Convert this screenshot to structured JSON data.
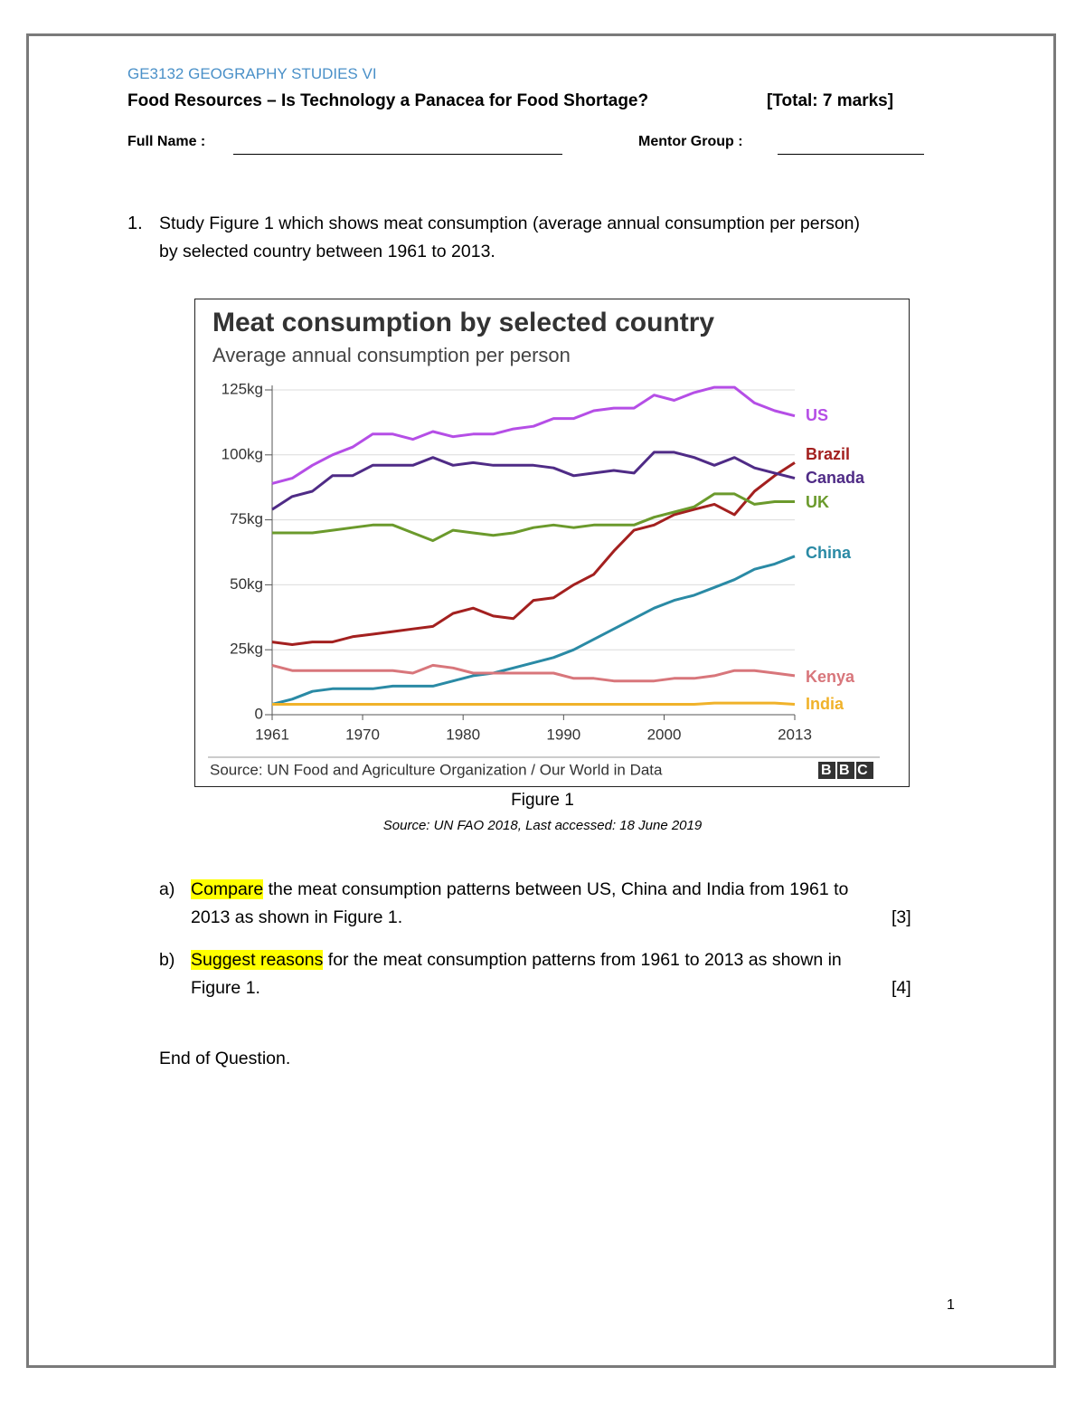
{
  "header": {
    "course": "GE3132  GEOGRAPHY STUDIES VI",
    "title": "Food Resources – Is Technology a Panacea for Food Shortage?",
    "total": "[Total: 7 marks]",
    "name_label": "Full Name  :",
    "mentor_label": "Mentor Group  :"
  },
  "question": {
    "number": "1.",
    "lines": [
      "Study Figure 1 which shows meat consumption (average annual consumption per person)",
      "by selected country between 1961 to 2013."
    ]
  },
  "chart_data": {
    "type": "line",
    "title": "Meat consumption by selected country",
    "subtitle": "Average annual consumption per person",
    "source": "Source: UN Food and Agriculture Organization / Our World in Data",
    "logo": "BBC",
    "x": [
      1961,
      1963,
      1965,
      1967,
      1969,
      1971,
      1973,
      1975,
      1977,
      1979,
      1981,
      1983,
      1985,
      1987,
      1989,
      1991,
      1993,
      1995,
      1997,
      1999,
      2001,
      2003,
      2005,
      2007,
      2009,
      2011,
      2013
    ],
    "xlim": [
      1961,
      2013
    ],
    "xticks": [
      1961,
      1970,
      1980,
      1990,
      2000,
      2013
    ],
    "ylim": [
      0,
      125
    ],
    "yticks": [
      0,
      {
        "value": 25,
        "label": "25kg"
      },
      {
        "value": 50,
        "label": "50kg"
      },
      {
        "value": 75,
        "label": "75kg"
      },
      {
        "value": 100,
        "label": "100kg"
      },
      {
        "value": 125,
        "label": "125kg"
      }
    ],
    "grid": true,
    "series": [
      {
        "name": "US",
        "color": "#b54ee6",
        "values": [
          89,
          91,
          96,
          100,
          103,
          108,
          108,
          106,
          109,
          107,
          108,
          108,
          110,
          111,
          114,
          114,
          117,
          118,
          118,
          123,
          121,
          124,
          126,
          126,
          120,
          117,
          115
        ]
      },
      {
        "name": "Brazil",
        "color": "#a3201f",
        "values": [
          28,
          27,
          28,
          28,
          30,
          31,
          32,
          33,
          34,
          39,
          41,
          38,
          37,
          44,
          45,
          50,
          54,
          63,
          71,
          73,
          77,
          79,
          81,
          77,
          86,
          92,
          97
        ]
      },
      {
        "name": "Canada",
        "color": "#4f2b86",
        "values": [
          79,
          84,
          86,
          92,
          92,
          96,
          96,
          96,
          99,
          96,
          97,
          96,
          96,
          96,
          95,
          92,
          93,
          94,
          93,
          101,
          101,
          99,
          96,
          99,
          95,
          93,
          91
        ]
      },
      {
        "name": "UK",
        "color": "#6b9a2c",
        "values": [
          70,
          70,
          70,
          71,
          72,
          73,
          73,
          70,
          67,
          71,
          70,
          69,
          70,
          72,
          73,
          72,
          73,
          73,
          73,
          76,
          78,
          80,
          85,
          85,
          81,
          82,
          82
        ]
      },
      {
        "name": "China",
        "color": "#2a8aa5",
        "values": [
          4,
          6,
          9,
          10,
          10,
          10,
          11,
          11,
          11,
          13,
          15,
          16,
          18,
          20,
          22,
          25,
          29,
          33,
          37,
          41,
          44,
          46,
          49,
          52,
          56,
          58,
          61
        ]
      },
      {
        "name": "Kenya",
        "color": "#d8767b",
        "values": [
          19,
          17,
          17,
          17,
          17,
          17,
          17,
          16,
          19,
          18,
          16,
          16,
          16,
          16,
          16,
          14,
          14,
          13,
          13,
          13,
          14,
          14,
          15,
          17,
          17,
          16,
          15
        ]
      },
      {
        "name": "India",
        "color": "#f0b22a",
        "values": [
          4,
          4,
          4,
          4,
          4,
          4,
          4,
          4,
          4,
          4,
          4,
          4,
          4,
          4,
          4,
          4,
          4,
          4,
          4,
          4,
          4,
          4,
          4.5,
          4.5,
          4.5,
          4.5,
          4
        ]
      }
    ]
  },
  "figure": {
    "caption": "Figure 1",
    "source": "Source: UN FAO 2018, Last accessed: 18 June 2019"
  },
  "parts": [
    {
      "label": "a)",
      "highlight": "Compare",
      "lines": [
        "the meat consumption patterns between US, China and India from 1961 to",
        "2013 as shown in Figure 1."
      ],
      "marks": "[3]"
    },
    {
      "label": "b)",
      "highlight": "Suggest reasons",
      "lines": [
        "for the meat consumption patterns from 1961 to 2013 as shown in",
        "Figure 1."
      ],
      "marks": "[4]"
    }
  ],
  "end": "End of Question.",
  "page_number": "1"
}
